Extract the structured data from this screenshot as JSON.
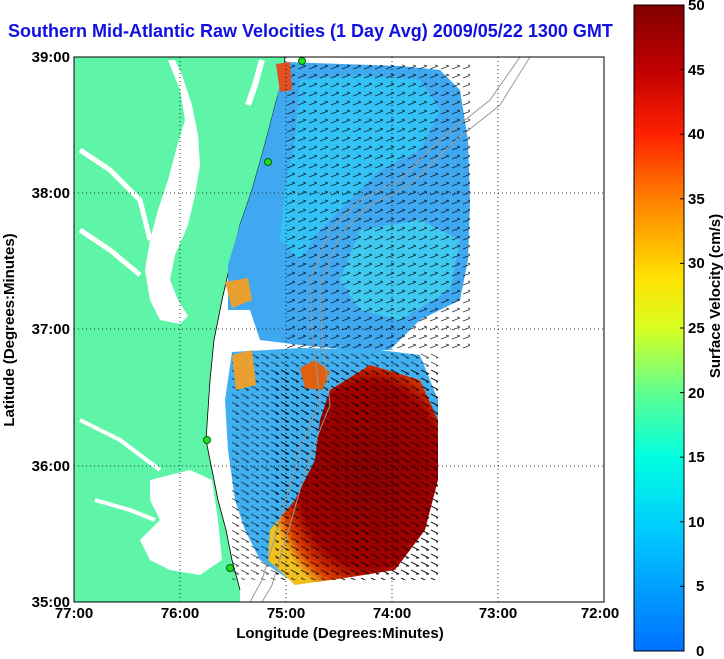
{
  "title": "Southern Mid-Atlantic Raw Velocities (1 Day Avg) 2009/05/22 1300 GMT",
  "x_axis": {
    "label": "Longitude (Degrees:Minutes)",
    "ticks": [
      "77:00",
      "76:00",
      "75:00",
      "74:00",
      "73:00",
      "72:00"
    ]
  },
  "y_axis": {
    "label": "Latitude (Degrees:Minutes)",
    "ticks": [
      "39:00",
      "38:00",
      "37:00",
      "36:00",
      "35:00"
    ]
  },
  "colorbar": {
    "label": "Surface Velocity (cm/s)",
    "ticks": [
      "50",
      "45",
      "40",
      "35",
      "30",
      "25",
      "20",
      "15",
      "10",
      "5",
      "0"
    ],
    "range": [
      0,
      50
    ]
  },
  "legend_colors": {
    "land": "#5ff5a8",
    "title": "#1010e0"
  }
}
